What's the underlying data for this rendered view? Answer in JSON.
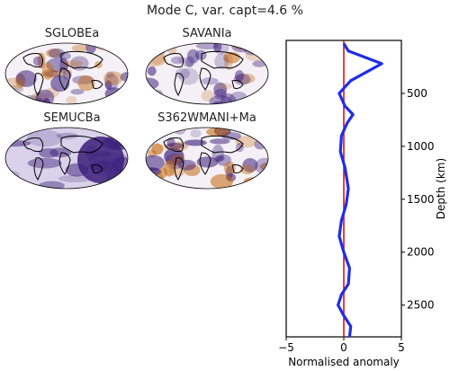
{
  "title": "Mode C, var. capt=4.6 %",
  "maps": [
    {
      "label": "SGLOBEa",
      "palette": "mixed"
    },
    {
      "label": "SAVANIa",
      "palette": "mixed"
    },
    {
      "label": "SEMUCBa",
      "palette": "purple"
    },
    {
      "label": "S362WMANI+Ma",
      "palette": "strong"
    }
  ],
  "colors": {
    "positive": "#3b1e7a",
    "negative": "#c46a10",
    "profile_line": "#1f2ee6",
    "zero_line": "#e01010",
    "frame": "#000000",
    "coast": "#000000"
  },
  "chart_data": {
    "type": "line",
    "xlabel": "Normalised anomaly",
    "ylabel": "Depth (km)",
    "xlim": [
      -5,
      5
    ],
    "ylim": [
      2800,
      0
    ],
    "xticks": [
      -5,
      0,
      5
    ],
    "yticks": [
      500,
      1000,
      1500,
      2000,
      2500
    ],
    "grid": false,
    "series": [
      {
        "x": [
          0.0,
          0.4,
          3.3,
          0.6,
          -0.4,
          0.1,
          0.8,
          0.3,
          -0.2,
          -0.3,
          0.1,
          0.4,
          0.2,
          -0.2,
          -0.4,
          0.0,
          0.5,
          0.4,
          -0.2,
          -0.5,
          0.0,
          0.6,
          0.5
        ],
        "y": [
          30,
          100,
          220,
          380,
          500,
          620,
          700,
          780,
          900,
          1050,
          1200,
          1400,
          1550,
          1700,
          1850,
          2000,
          2150,
          2300,
          2400,
          2500,
          2600,
          2700,
          2800
        ]
      }
    ],
    "zero_line": {
      "x": 0
    }
  }
}
